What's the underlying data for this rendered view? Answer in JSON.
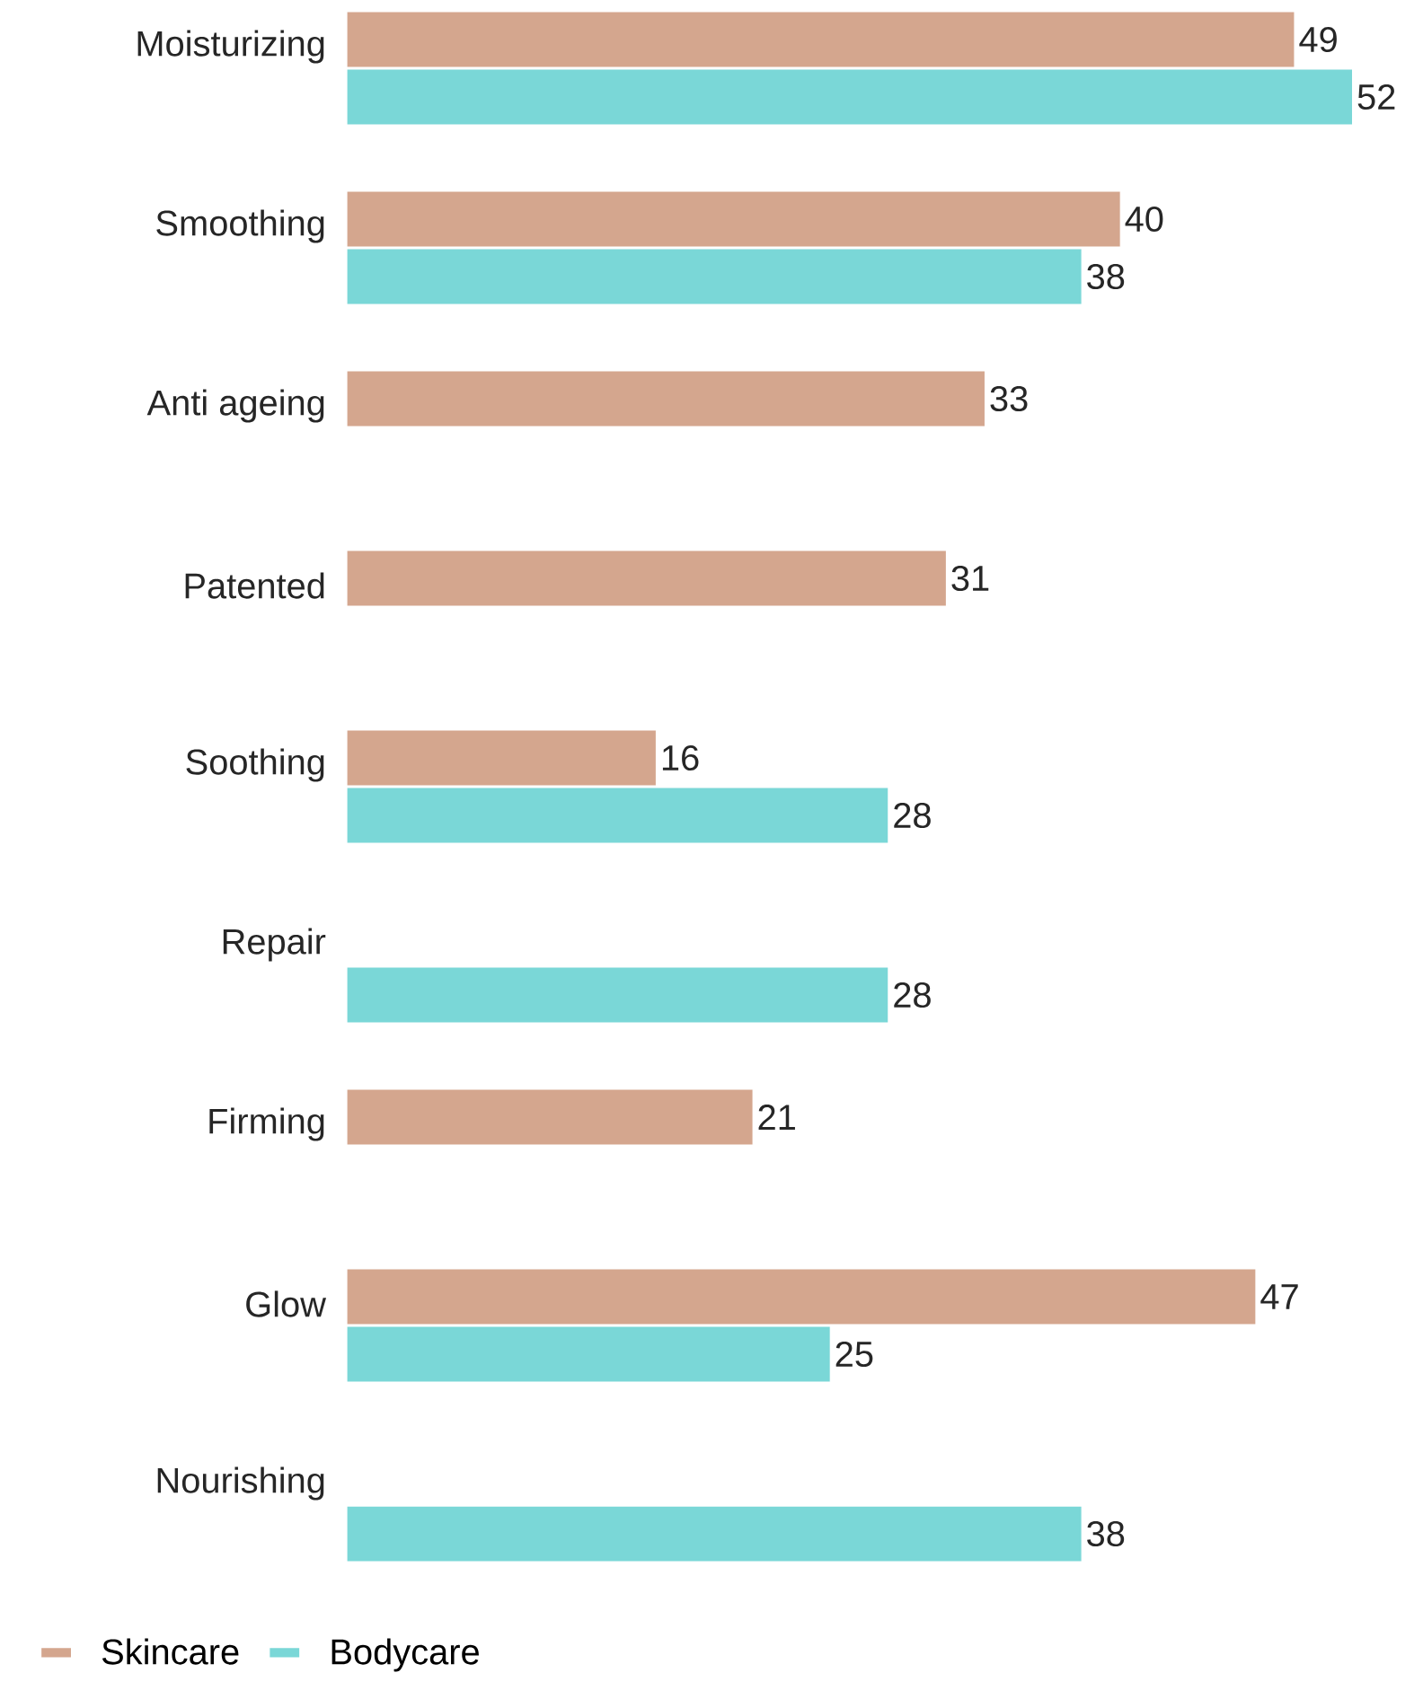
{
  "chart_data": {
    "type": "bar",
    "orientation": "horizontal",
    "data_labels": true,
    "legend": "bottom left",
    "categories": [
      "Moisturizing",
      "Smoothing",
      "Anti ageing",
      "Patented",
      "Soothing",
      "Repair",
      "Firming",
      "Glow",
      "Nourishing"
    ],
    "series": [
      {
        "name": "Skincare",
        "color": "#d4a68e",
        "values": [
          49,
          40,
          33,
          31,
          16,
          null,
          21,
          47,
          null
        ]
      },
      {
        "name": "Bodycare",
        "color": "#7ad7d7",
        "values": [
          52,
          38,
          null,
          null,
          28,
          28,
          null,
          25,
          38
        ]
      }
    ]
  }
}
